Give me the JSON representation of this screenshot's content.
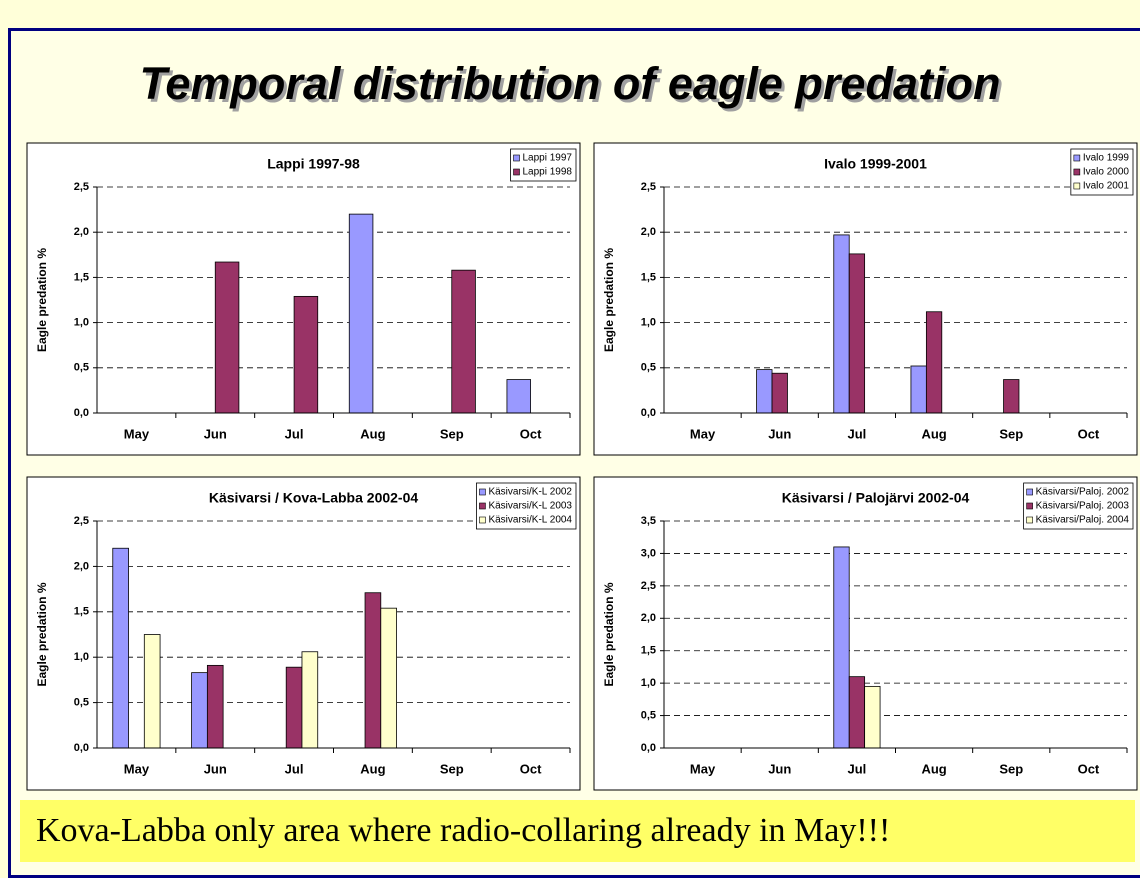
{
  "title": "Temporal distribution of eagle predation",
  "note": "Kova-Labba only area where radio-collaring already in May!!!",
  "chart_data": [
    {
      "type": "bar",
      "title": "Lappi 1997-98",
      "y_label": "Eagle predation %",
      "categories": [
        "May",
        "Jun",
        "Jul",
        "Aug",
        "Sep",
        "Oct"
      ],
      "series": [
        {
          "name": "Lappi 1997",
          "color": "#9999ff",
          "values": [
            0,
            0,
            0,
            2.2,
            0,
            0.37
          ]
        },
        {
          "name": "Lappi 1998",
          "color": "#993366",
          "values": [
            0,
            1.67,
            1.29,
            0,
            1.58,
            0
          ]
        }
      ],
      "ylim": [
        0,
        2.5
      ],
      "yticks": [
        {
          "value": 0,
          "label": "0,0"
        },
        {
          "value": 0.5,
          "label": "0,5"
        },
        {
          "value": 1,
          "label": "1,0"
        },
        {
          "value": 1.5,
          "label": "1,5"
        },
        {
          "value": 2,
          "label": "2,0"
        },
        {
          "value": 2.5,
          "label": "2,5"
        }
      ],
      "grid": true,
      "legend": "top-right"
    },
    {
      "type": "bar",
      "title": "Ivalo 1999-2001",
      "y_label": "Eagle predation %",
      "categories": [
        "May",
        "Jun",
        "Jul",
        "Aug",
        "Sep",
        "Oct"
      ],
      "series": [
        {
          "name": "Ivalo 1999",
          "color": "#9999ff",
          "values": [
            0,
            0.48,
            1.97,
            0.52,
            0,
            0
          ]
        },
        {
          "name": "Ivalo 2000",
          "color": "#993366",
          "values": [
            0,
            0.44,
            1.76,
            1.12,
            0.37,
            0
          ]
        },
        {
          "name": "Ivalo 2001",
          "color": "#ffffcc",
          "values": [
            0,
            0,
            0,
            0,
            0,
            0
          ]
        }
      ],
      "ylim": [
        0,
        2.5
      ],
      "yticks": [
        {
          "value": 0,
          "label": "0,0"
        },
        {
          "value": 0.5,
          "label": "0,5"
        },
        {
          "value": 1,
          "label": "1,0"
        },
        {
          "value": 1.5,
          "label": "1,5"
        },
        {
          "value": 2,
          "label": "2,0"
        },
        {
          "value": 2.5,
          "label": "2,5"
        }
      ],
      "grid": true,
      "legend": "top-right"
    },
    {
      "type": "bar",
      "title": "Käsivarsi / Kova-Labba 2002-04",
      "y_label": "Eagle predation %",
      "categories": [
        "May",
        "Jun",
        "Jul",
        "Aug",
        "Sep",
        "Oct"
      ],
      "series": [
        {
          "name": "Käsivarsi/K-L 2002",
          "color": "#9999ff",
          "values": [
            2.2,
            0.83,
            0,
            0,
            0,
            0
          ]
        },
        {
          "name": "Käsivarsi/K-L 2003",
          "color": "#993366",
          "values": [
            0,
            0.91,
            0.89,
            1.71,
            0,
            0
          ]
        },
        {
          "name": "Käsivarsi/K-L 2004",
          "color": "#ffffcc",
          "values": [
            1.25,
            0,
            1.06,
            1.54,
            0,
            0
          ]
        }
      ],
      "ylim": [
        0,
        2.5
      ],
      "yticks": [
        {
          "value": 0,
          "label": "0,0"
        },
        {
          "value": 0.5,
          "label": "0,5"
        },
        {
          "value": 1,
          "label": "1,0"
        },
        {
          "value": 1.5,
          "label": "1,5"
        },
        {
          "value": 2,
          "label": "2,0"
        },
        {
          "value": 2.5,
          "label": "2,5"
        }
      ],
      "grid": true,
      "legend": "top-right"
    },
    {
      "type": "bar",
      "title": "Käsivarsi / Palojärvi 2002-04",
      "y_label": "Eagle predation %",
      "categories": [
        "May",
        "Jun",
        "Jul",
        "Aug",
        "Sep",
        "Oct"
      ],
      "series": [
        {
          "name": "Käsivarsi/Paloj. 2002",
          "color": "#9999ff",
          "values": [
            0,
            0,
            3.1,
            0,
            0,
            0
          ]
        },
        {
          "name": "Käsivarsi/Paloj. 2003",
          "color": "#993366",
          "values": [
            0,
            0,
            1.1,
            0,
            0,
            0
          ]
        },
        {
          "name": "Käsivarsi/Paloj. 2004",
          "color": "#ffffcc",
          "values": [
            0,
            0,
            0.95,
            0,
            0,
            0
          ]
        }
      ],
      "ylim": [
        0,
        3.5
      ],
      "yticks": [
        {
          "value": 0,
          "label": "0,0"
        },
        {
          "value": 0.5,
          "label": "0,5"
        },
        {
          "value": 1,
          "label": "1,0"
        },
        {
          "value": 1.5,
          "label": "1,5"
        },
        {
          "value": 2,
          "label": "2,0"
        },
        {
          "value": 2.5,
          "label": "2,5"
        },
        {
          "value": 3,
          "label": "3,0"
        },
        {
          "value": 3.5,
          "label": "3,5"
        }
      ],
      "grid": true,
      "legend": "top-right"
    }
  ]
}
